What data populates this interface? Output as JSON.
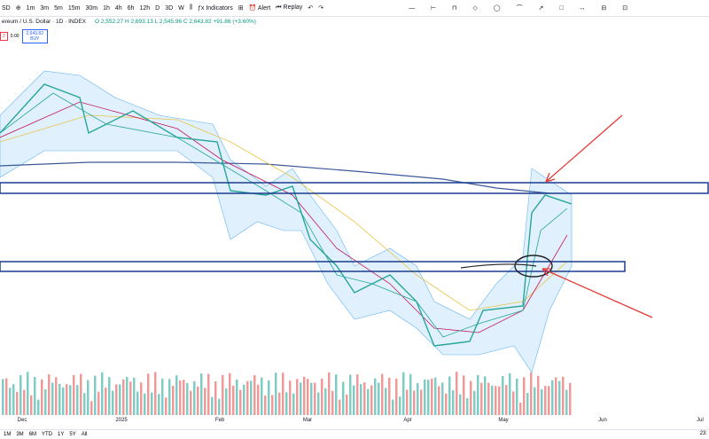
{
  "toolbar": {
    "symbol": "SD",
    "intervals": [
      "1m",
      "3m",
      "5m",
      "15m",
      "30m",
      "1h",
      "4h",
      "6h",
      "12h",
      "D",
      "3D",
      "W"
    ],
    "indicators": "Indicators",
    "alert": "Alert",
    "replay": "Replay"
  },
  "legend": {
    "title": "ereum / U.S. Dollar · 1D · INDEX",
    "ohlc": "O 2,552.27 H 2,693.13 L 2,545.96 C 2,643.82 +91.86 (+3.60%)"
  },
  "trade": {
    "sell": "2",
    "spread": "0.00",
    "buy_price": "2,643.82",
    "buy": "BUY"
  },
  "time_axis": [
    "Dec",
    "2025",
    "Feb",
    "Mar",
    "Apr",
    "May",
    "Jun",
    "Jul"
  ],
  "ranges": [
    "1M",
    "3M",
    "6M",
    "YTD",
    "1Y",
    "5Y",
    "All"
  ],
  "clock": "23:"
}
